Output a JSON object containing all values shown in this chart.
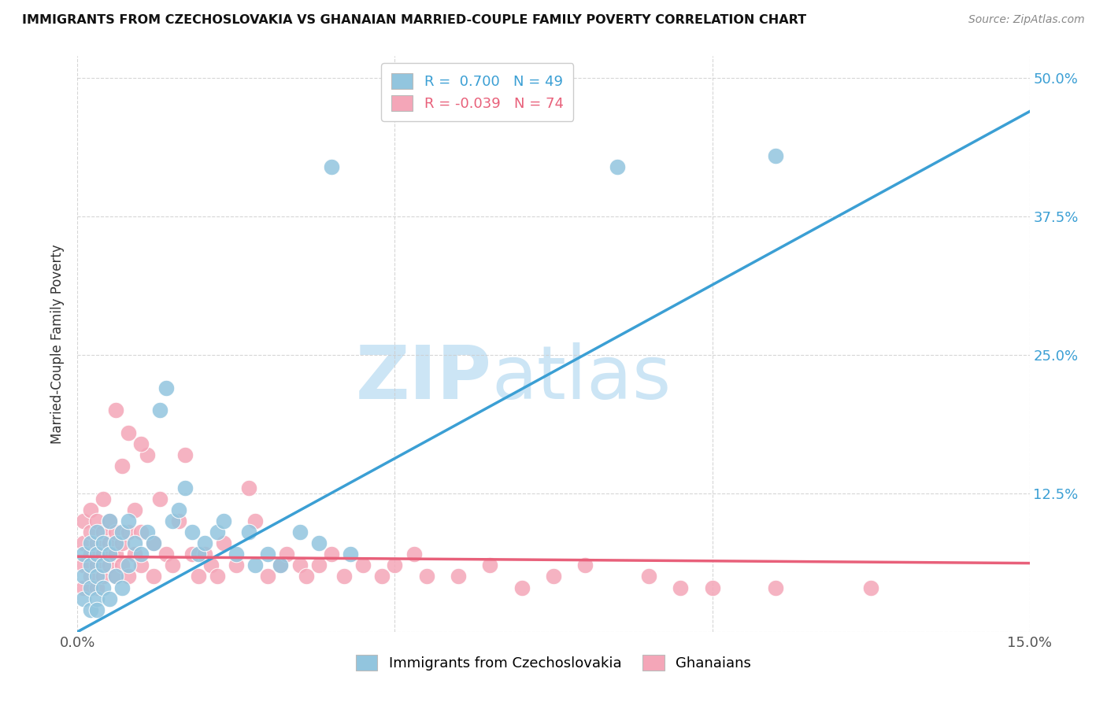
{
  "title": "IMMIGRANTS FROM CZECHOSLOVAKIA VS GHANAIAN MARRIED-COUPLE FAMILY POVERTY CORRELATION CHART",
  "source": "Source: ZipAtlas.com",
  "ylabel": "Married-Couple Family Poverty",
  "xlim": [
    0.0,
    0.15
  ],
  "ylim": [
    0.0,
    0.52
  ],
  "yticks": [
    0.0,
    0.125,
    0.25,
    0.375,
    0.5
  ],
  "yticklabels": [
    "",
    "12.5%",
    "25.0%",
    "37.5%",
    "50.0%"
  ],
  "xticks": [
    0.0,
    0.05,
    0.1,
    0.15
  ],
  "blue_R": 0.7,
  "blue_N": 49,
  "pink_R": -0.039,
  "pink_N": 74,
  "blue_color": "#92c5de",
  "pink_color": "#f4a6b8",
  "blue_line_color": "#3b9fd4",
  "pink_line_color": "#e8607a",
  "watermark_color": "#cce5f5",
  "blue_line_x0": 0.0,
  "blue_line_y0": 0.0,
  "blue_line_x1": 0.15,
  "blue_line_y1": 0.47,
  "pink_line_x0": 0.0,
  "pink_line_y0": 0.068,
  "pink_line_x1": 0.15,
  "pink_line_y1": 0.062,
  "blue_scatter_x": [
    0.001,
    0.001,
    0.001,
    0.002,
    0.002,
    0.002,
    0.002,
    0.003,
    0.003,
    0.003,
    0.003,
    0.003,
    0.004,
    0.004,
    0.004,
    0.005,
    0.005,
    0.005,
    0.006,
    0.006,
    0.007,
    0.007,
    0.008,
    0.008,
    0.009,
    0.01,
    0.011,
    0.012,
    0.013,
    0.014,
    0.015,
    0.016,
    0.017,
    0.018,
    0.019,
    0.02,
    0.022,
    0.023,
    0.025,
    0.027,
    0.028,
    0.03,
    0.032,
    0.035,
    0.038,
    0.04,
    0.043,
    0.085,
    0.11
  ],
  "blue_scatter_y": [
    0.03,
    0.05,
    0.07,
    0.02,
    0.04,
    0.06,
    0.08,
    0.03,
    0.05,
    0.07,
    0.09,
    0.02,
    0.04,
    0.06,
    0.08,
    0.03,
    0.07,
    0.1,
    0.05,
    0.08,
    0.04,
    0.09,
    0.06,
    0.1,
    0.08,
    0.07,
    0.09,
    0.08,
    0.2,
    0.22,
    0.1,
    0.11,
    0.13,
    0.09,
    0.07,
    0.08,
    0.09,
    0.1,
    0.07,
    0.09,
    0.06,
    0.07,
    0.06,
    0.09,
    0.08,
    0.42,
    0.07,
    0.42,
    0.43
  ],
  "pink_scatter_x": [
    0.001,
    0.001,
    0.001,
    0.001,
    0.002,
    0.002,
    0.002,
    0.002,
    0.003,
    0.003,
    0.003,
    0.003,
    0.004,
    0.004,
    0.004,
    0.004,
    0.005,
    0.005,
    0.005,
    0.006,
    0.006,
    0.006,
    0.007,
    0.007,
    0.007,
    0.008,
    0.008,
    0.009,
    0.009,
    0.01,
    0.01,
    0.011,
    0.012,
    0.012,
    0.013,
    0.014,
    0.015,
    0.016,
    0.017,
    0.018,
    0.019,
    0.02,
    0.021,
    0.022,
    0.023,
    0.025,
    0.027,
    0.028,
    0.03,
    0.032,
    0.033,
    0.035,
    0.036,
    0.038,
    0.04,
    0.042,
    0.045,
    0.048,
    0.05,
    0.053,
    0.055,
    0.06,
    0.065,
    0.07,
    0.075,
    0.08,
    0.09,
    0.095,
    0.1,
    0.11,
    0.006,
    0.008,
    0.01,
    0.125
  ],
  "pink_scatter_y": [
    0.04,
    0.06,
    0.08,
    0.1,
    0.05,
    0.07,
    0.09,
    0.11,
    0.04,
    0.06,
    0.08,
    0.1,
    0.05,
    0.07,
    0.09,
    0.12,
    0.06,
    0.08,
    0.1,
    0.05,
    0.07,
    0.09,
    0.08,
    0.15,
    0.06,
    0.05,
    0.09,
    0.07,
    0.11,
    0.06,
    0.09,
    0.16,
    0.05,
    0.08,
    0.12,
    0.07,
    0.06,
    0.1,
    0.16,
    0.07,
    0.05,
    0.07,
    0.06,
    0.05,
    0.08,
    0.06,
    0.13,
    0.1,
    0.05,
    0.06,
    0.07,
    0.06,
    0.05,
    0.06,
    0.07,
    0.05,
    0.06,
    0.05,
    0.06,
    0.07,
    0.05,
    0.05,
    0.06,
    0.04,
    0.05,
    0.06,
    0.05,
    0.04,
    0.04,
    0.04,
    0.2,
    0.18,
    0.17,
    0.04
  ]
}
